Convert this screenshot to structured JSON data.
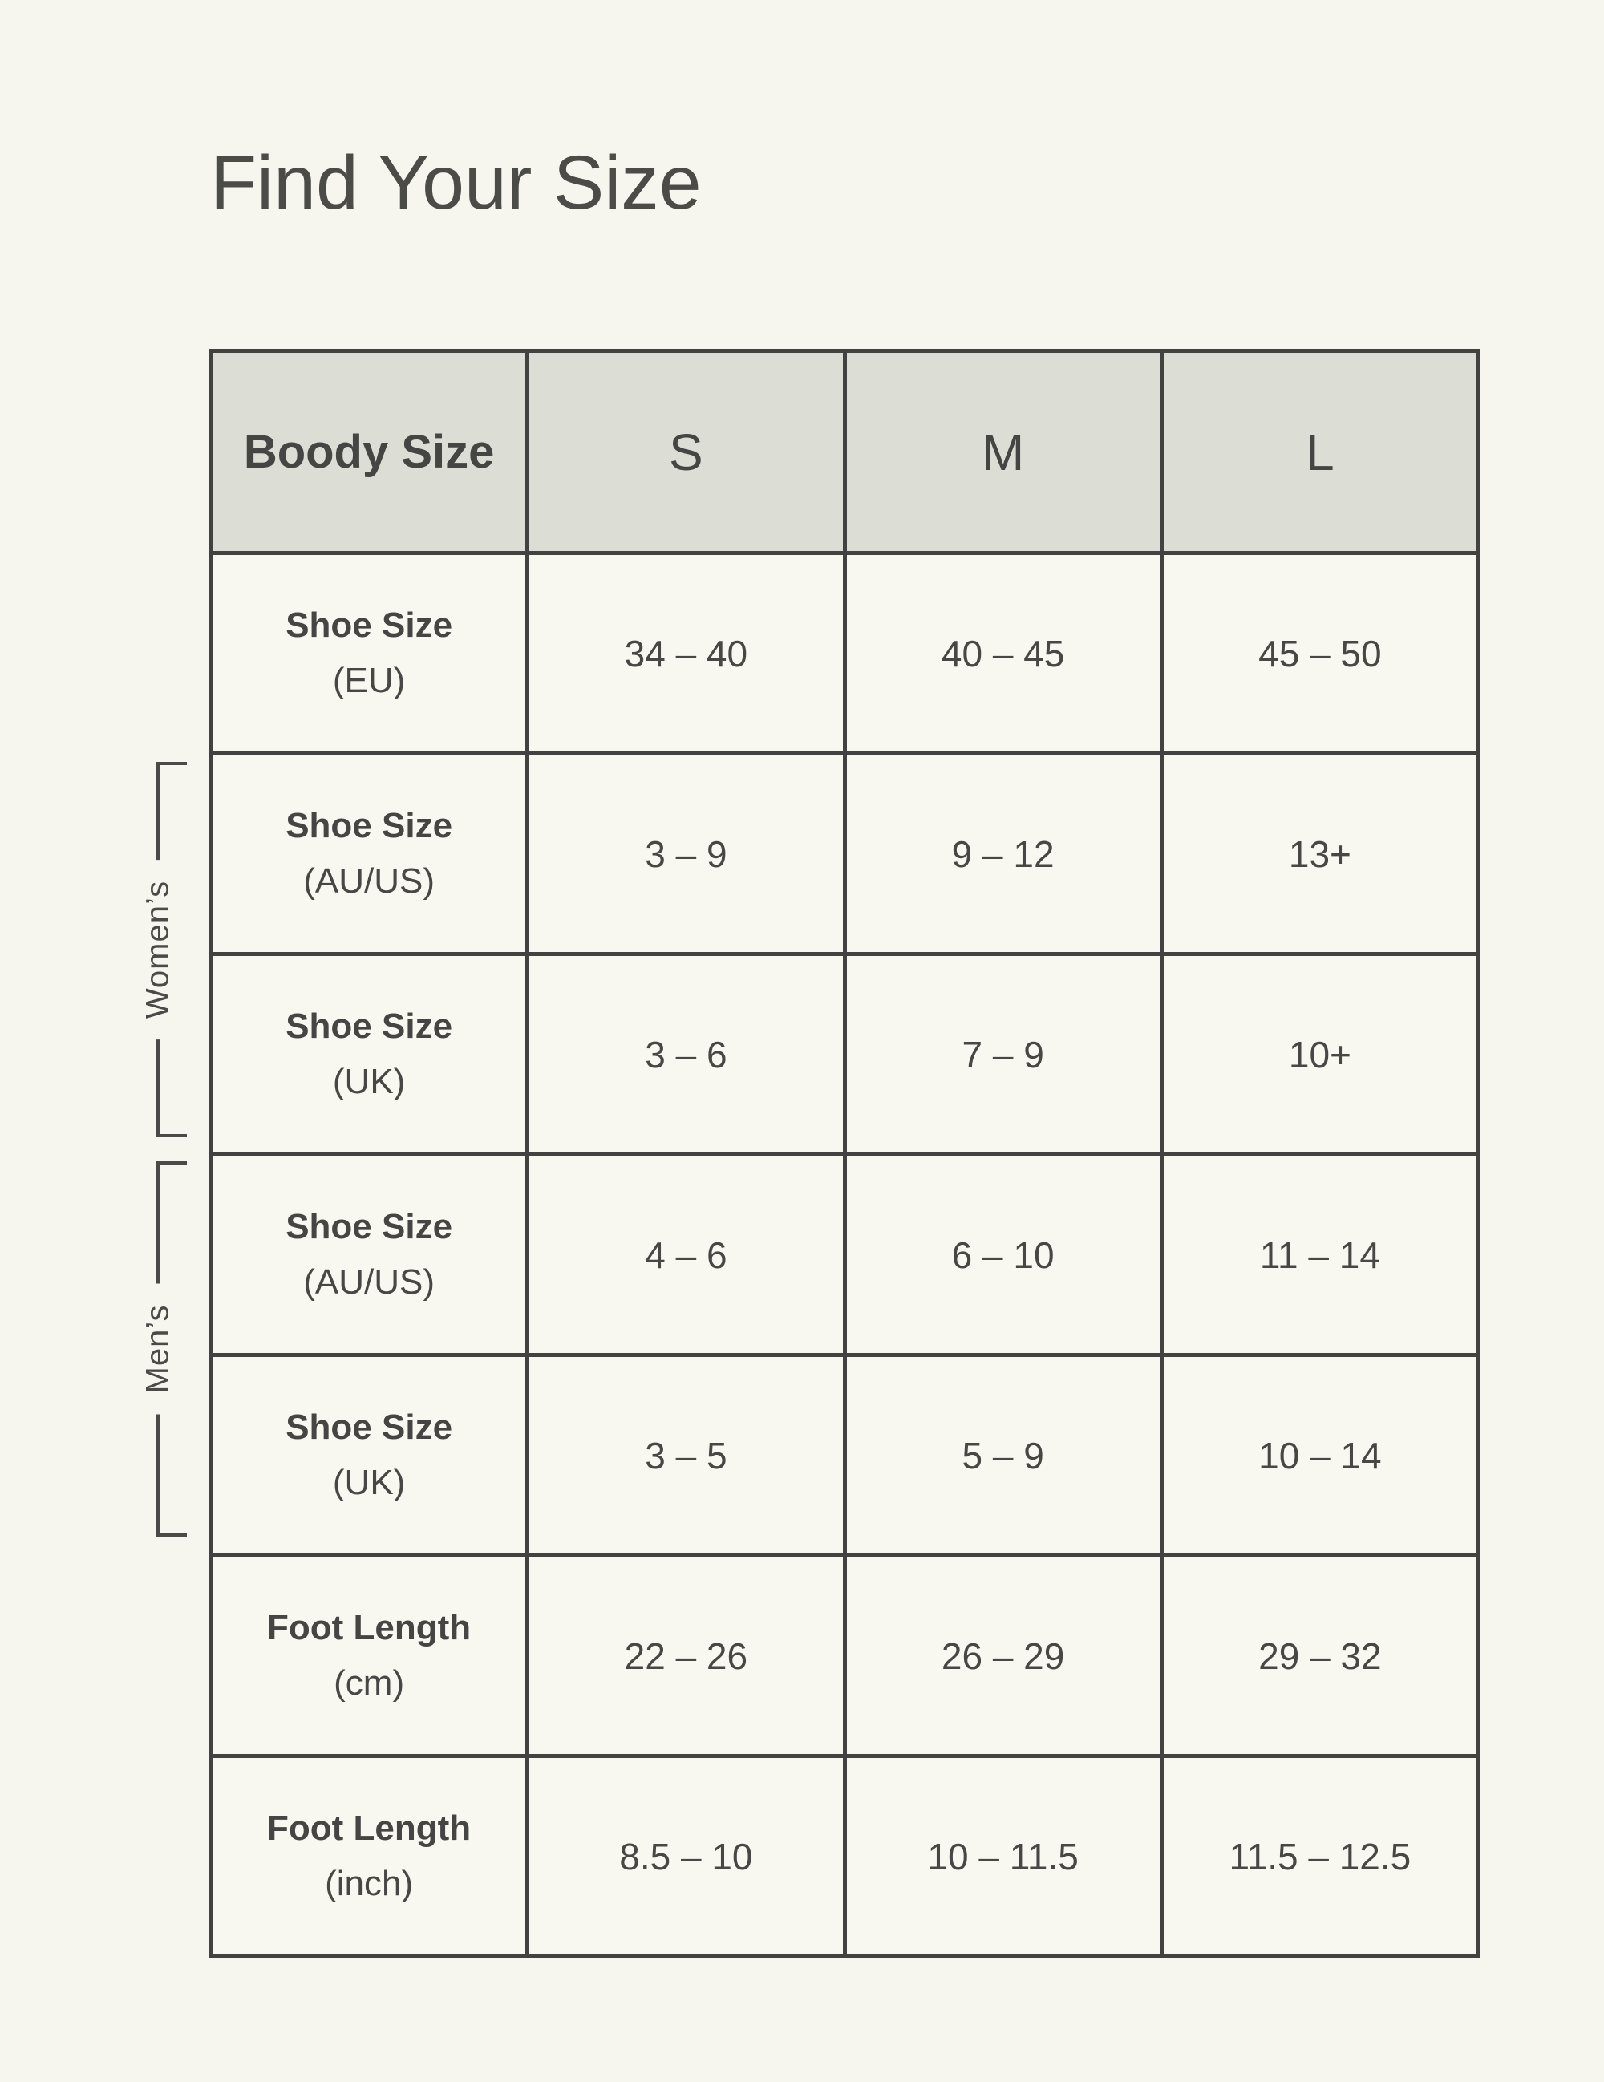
{
  "page": {
    "title": "Find Your Size"
  },
  "colors": {
    "page_background": "#f6f6ef",
    "cell_background": "#f8f8f1",
    "header_background": "#dcddd5",
    "table_border": "#424241",
    "text": "#474745"
  },
  "table": {
    "header": {
      "label": "Boody Size",
      "sizes": [
        "S",
        "M",
        "L"
      ]
    },
    "groups": [
      {
        "label": "Women’s",
        "rows_covered": [
          "Shoe Size (AU/US)",
          "Shoe Size (UK)"
        ]
      },
      {
        "label": "Men’s",
        "rows_covered": [
          "Shoe Size (AU/US)",
          "Shoe Size (UK)"
        ]
      }
    ],
    "rows": [
      {
        "label": "Shoe Size",
        "sublabel": "(EU)",
        "values": [
          "34 – 40",
          "40 – 45",
          "45 – 50"
        ]
      },
      {
        "label": "Shoe Size",
        "sublabel": "(AU/US)",
        "values": [
          "3 – 9",
          "9 – 12",
          "13+"
        ]
      },
      {
        "label": "Shoe Size",
        "sublabel": "(UK)",
        "values": [
          "3 – 6",
          "7 – 9",
          "10+"
        ]
      },
      {
        "label": "Shoe Size",
        "sublabel": "(AU/US)",
        "values": [
          "4 – 6",
          "6 – 10",
          "11 – 14"
        ]
      },
      {
        "label": "Shoe Size",
        "sublabel": "(UK)",
        "values": [
          "3 – 5",
          "5 – 9",
          "10 – 14"
        ]
      },
      {
        "label": "Foot Length",
        "sublabel": "(cm)",
        "values": [
          "22 – 26",
          "26 – 29",
          "29 – 32"
        ]
      },
      {
        "label": "Foot Length",
        "sublabel": "(inch)",
        "values": [
          "8.5 – 10",
          "10 – 11.5",
          "11.5 – 12.5"
        ]
      }
    ]
  }
}
